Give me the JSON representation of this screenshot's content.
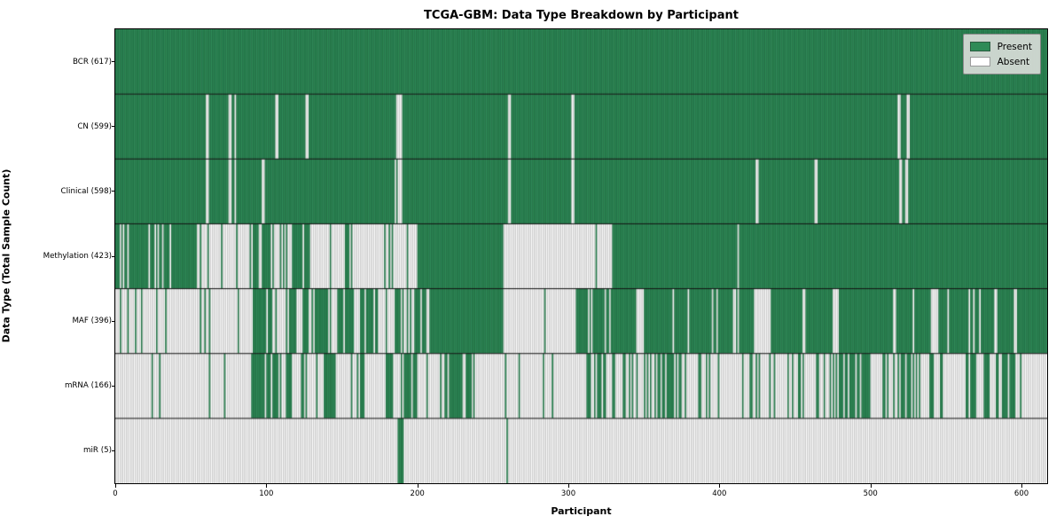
{
  "title": "TCGA-GBM: Data Type Breakdown by Participant",
  "axes": {
    "xlabel": "Participant",
    "ylabel": "Data Type (Total Sample Count)"
  },
  "legend": {
    "present_label": "Present",
    "absent_label": "Absent"
  },
  "chart_data": {
    "type": "heatmap",
    "title": "TCGA-GBM: Data Type Breakdown by Participant",
    "xlabel": "Participant",
    "ylabel": "Data Type (Total Sample Count)",
    "x_ticks": [
      0,
      100,
      200,
      300,
      400,
      500,
      600
    ],
    "x_max": 617,
    "n_participants": 617,
    "grid": "row-dividers",
    "legend_position": "upper-right",
    "legend_entries": [
      {
        "label": "Present",
        "color": "#2e8b57"
      },
      {
        "label": "Absent",
        "color": "#ffffff"
      }
    ],
    "colors": {
      "present": "#2e8b57",
      "absent": "#ffffff",
      "present_edge": "rgba(8,40,24,0.45)",
      "absent_edge": "rgba(130,130,130,0.75)",
      "divider": "#111111"
    },
    "rows": [
      {
        "label": "BCR (617)",
        "data_type": "BCR",
        "total": 617,
        "segments": [
          [
            0,
            617,
            1
          ]
        ]
      },
      {
        "label": "CN (599)",
        "data_type": "CN",
        "total": 599,
        "segments": [
          [
            0,
            60,
            1
          ],
          [
            60,
            62,
            0
          ],
          [
            62,
            75,
            1
          ],
          [
            75,
            77,
            0
          ],
          [
            77,
            79,
            1
          ],
          [
            79,
            80,
            0
          ],
          [
            80,
            106,
            1
          ],
          [
            106,
            108,
            0
          ],
          [
            108,
            126,
            1
          ],
          [
            126,
            128,
            0
          ],
          [
            128,
            185,
            1
          ],
          [
            185,
            190,
            0.25
          ],
          [
            190,
            260,
            1
          ],
          [
            260,
            262,
            0
          ],
          [
            262,
            302,
            1
          ],
          [
            302,
            304,
            0
          ],
          [
            304,
            518,
            1
          ],
          [
            518,
            520,
            0
          ],
          [
            520,
            524,
            1
          ],
          [
            524,
            526,
            0
          ],
          [
            526,
            617,
            1
          ]
        ]
      },
      {
        "label": "Clinical (598)",
        "data_type": "Clinical",
        "total": 598,
        "segments": [
          [
            0,
            60,
            1
          ],
          [
            60,
            62,
            0
          ],
          [
            62,
            75,
            1
          ],
          [
            75,
            77,
            0
          ],
          [
            77,
            79,
            1
          ],
          [
            79,
            80,
            0
          ],
          [
            80,
            97,
            1
          ],
          [
            97,
            99,
            0
          ],
          [
            99,
            185,
            1
          ],
          [
            185,
            190,
            0.25
          ],
          [
            190,
            260,
            1
          ],
          [
            260,
            262,
            0
          ],
          [
            262,
            302,
            1
          ],
          [
            302,
            304,
            0
          ],
          [
            304,
            424,
            1
          ],
          [
            424,
            426,
            0
          ],
          [
            426,
            463,
            1
          ],
          [
            463,
            465,
            0
          ],
          [
            465,
            519,
            1
          ],
          [
            519,
            521,
            0
          ],
          [
            521,
            523,
            1
          ],
          [
            523,
            525,
            0
          ],
          [
            525,
            617,
            1
          ]
        ]
      },
      {
        "label": "Methylation (423)",
        "data_type": "Methylation",
        "total": 423,
        "segments": [
          [
            0,
            55,
            0.78
          ],
          [
            55,
            90,
            0.15
          ],
          [
            90,
            105,
            0.8
          ],
          [
            105,
            117,
            0.3
          ],
          [
            117,
            129,
            0.85
          ],
          [
            129,
            137,
            0.1
          ],
          [
            137,
            158,
            0.45
          ],
          [
            158,
            185,
            0.18
          ],
          [
            185,
            200,
            0.25
          ],
          [
            200,
            257,
            1
          ],
          [
            257,
            318,
            0
          ],
          [
            318,
            319,
            1
          ],
          [
            319,
            329,
            0
          ],
          [
            329,
            412,
            1
          ],
          [
            412,
            413,
            0
          ],
          [
            413,
            617,
            1
          ]
        ]
      },
      {
        "label": "MAF (396)",
        "data_type": "MAF",
        "total": 396,
        "segments": [
          [
            0,
            17,
            0.04
          ],
          [
            17,
            18,
            1
          ],
          [
            18,
            27,
            0.02
          ],
          [
            27,
            28,
            1
          ],
          [
            28,
            59,
            0.03
          ],
          [
            59,
            60,
            1
          ],
          [
            60,
            90,
            0.04
          ],
          [
            90,
            105,
            0.75
          ],
          [
            105,
            113,
            0.1
          ],
          [
            113,
            120,
            0.9
          ],
          [
            120,
            124,
            0.1
          ],
          [
            124,
            128,
            0.9
          ],
          [
            128,
            132,
            0.1
          ],
          [
            132,
            141,
            0.9
          ],
          [
            141,
            147,
            0.15
          ],
          [
            147,
            158,
            0.9
          ],
          [
            158,
            162,
            0.1
          ],
          [
            162,
            174,
            0.9
          ],
          [
            174,
            185,
            0.15
          ],
          [
            185,
            189,
            0.9
          ],
          [
            189,
            193,
            0.1
          ],
          [
            193,
            206,
            0.85
          ],
          [
            206,
            208,
            0
          ],
          [
            208,
            257,
            0.97
          ],
          [
            257,
            284,
            0.02
          ],
          [
            284,
            285,
            1
          ],
          [
            285,
            305,
            0.02
          ],
          [
            305,
            345,
            0.88
          ],
          [
            345,
            350,
            0.2
          ],
          [
            350,
            424,
            0.92
          ],
          [
            424,
            434,
            0.3
          ],
          [
            434,
            474,
            0.92
          ],
          [
            474,
            478,
            0.2
          ],
          [
            478,
            515,
            0.92
          ],
          [
            515,
            517,
            0
          ],
          [
            517,
            541,
            0.9
          ],
          [
            541,
            545,
            0.2
          ],
          [
            545,
            617,
            0.93
          ]
        ]
      },
      {
        "label": "mRNA (166)",
        "data_type": "mRNA",
        "total": 166,
        "segments": [
          [
            0,
            24,
            0.02
          ],
          [
            24,
            25,
            1
          ],
          [
            25,
            29,
            0
          ],
          [
            29,
            30,
            1
          ],
          [
            30,
            90,
            0.02
          ],
          [
            90,
            108,
            0.75
          ],
          [
            108,
            113,
            0.1
          ],
          [
            113,
            117,
            0.85
          ],
          [
            117,
            123,
            0.1
          ],
          [
            123,
            127,
            0.85
          ],
          [
            127,
            138,
            0.12
          ],
          [
            138,
            146,
            0.85
          ],
          [
            146,
            160,
            0.1
          ],
          [
            160,
            164,
            0.85
          ],
          [
            164,
            178,
            0.08
          ],
          [
            178,
            184,
            0.8
          ],
          [
            184,
            189,
            0.1
          ],
          [
            189,
            200,
            0.6
          ],
          [
            200,
            217,
            0.15
          ],
          [
            217,
            239,
            0.8
          ],
          [
            239,
            258,
            0.05
          ],
          [
            258,
            259,
            1
          ],
          [
            259,
            283,
            0.03
          ],
          [
            283,
            284,
            1
          ],
          [
            284,
            308,
            0.03
          ],
          [
            308,
            360,
            0.3
          ],
          [
            360,
            375,
            0.7
          ],
          [
            375,
            478,
            0.28
          ],
          [
            478,
            498,
            0.7
          ],
          [
            498,
            518,
            0.3
          ],
          [
            518,
            533,
            0.7
          ],
          [
            533,
            563,
            0.25
          ],
          [
            563,
            570,
            0.8
          ],
          [
            570,
            587,
            0.3
          ],
          [
            587,
            601,
            0.75
          ],
          [
            601,
            617,
            0.05
          ]
        ]
      },
      {
        "label": "miR (5)",
        "data_type": "miR",
        "total": 5,
        "segments": [
          [
            0,
            187,
            0
          ],
          [
            187,
            191,
            1
          ],
          [
            191,
            259,
            0
          ],
          [
            259,
            260,
            1
          ],
          [
            260,
            617,
            0
          ]
        ]
      }
    ]
  }
}
